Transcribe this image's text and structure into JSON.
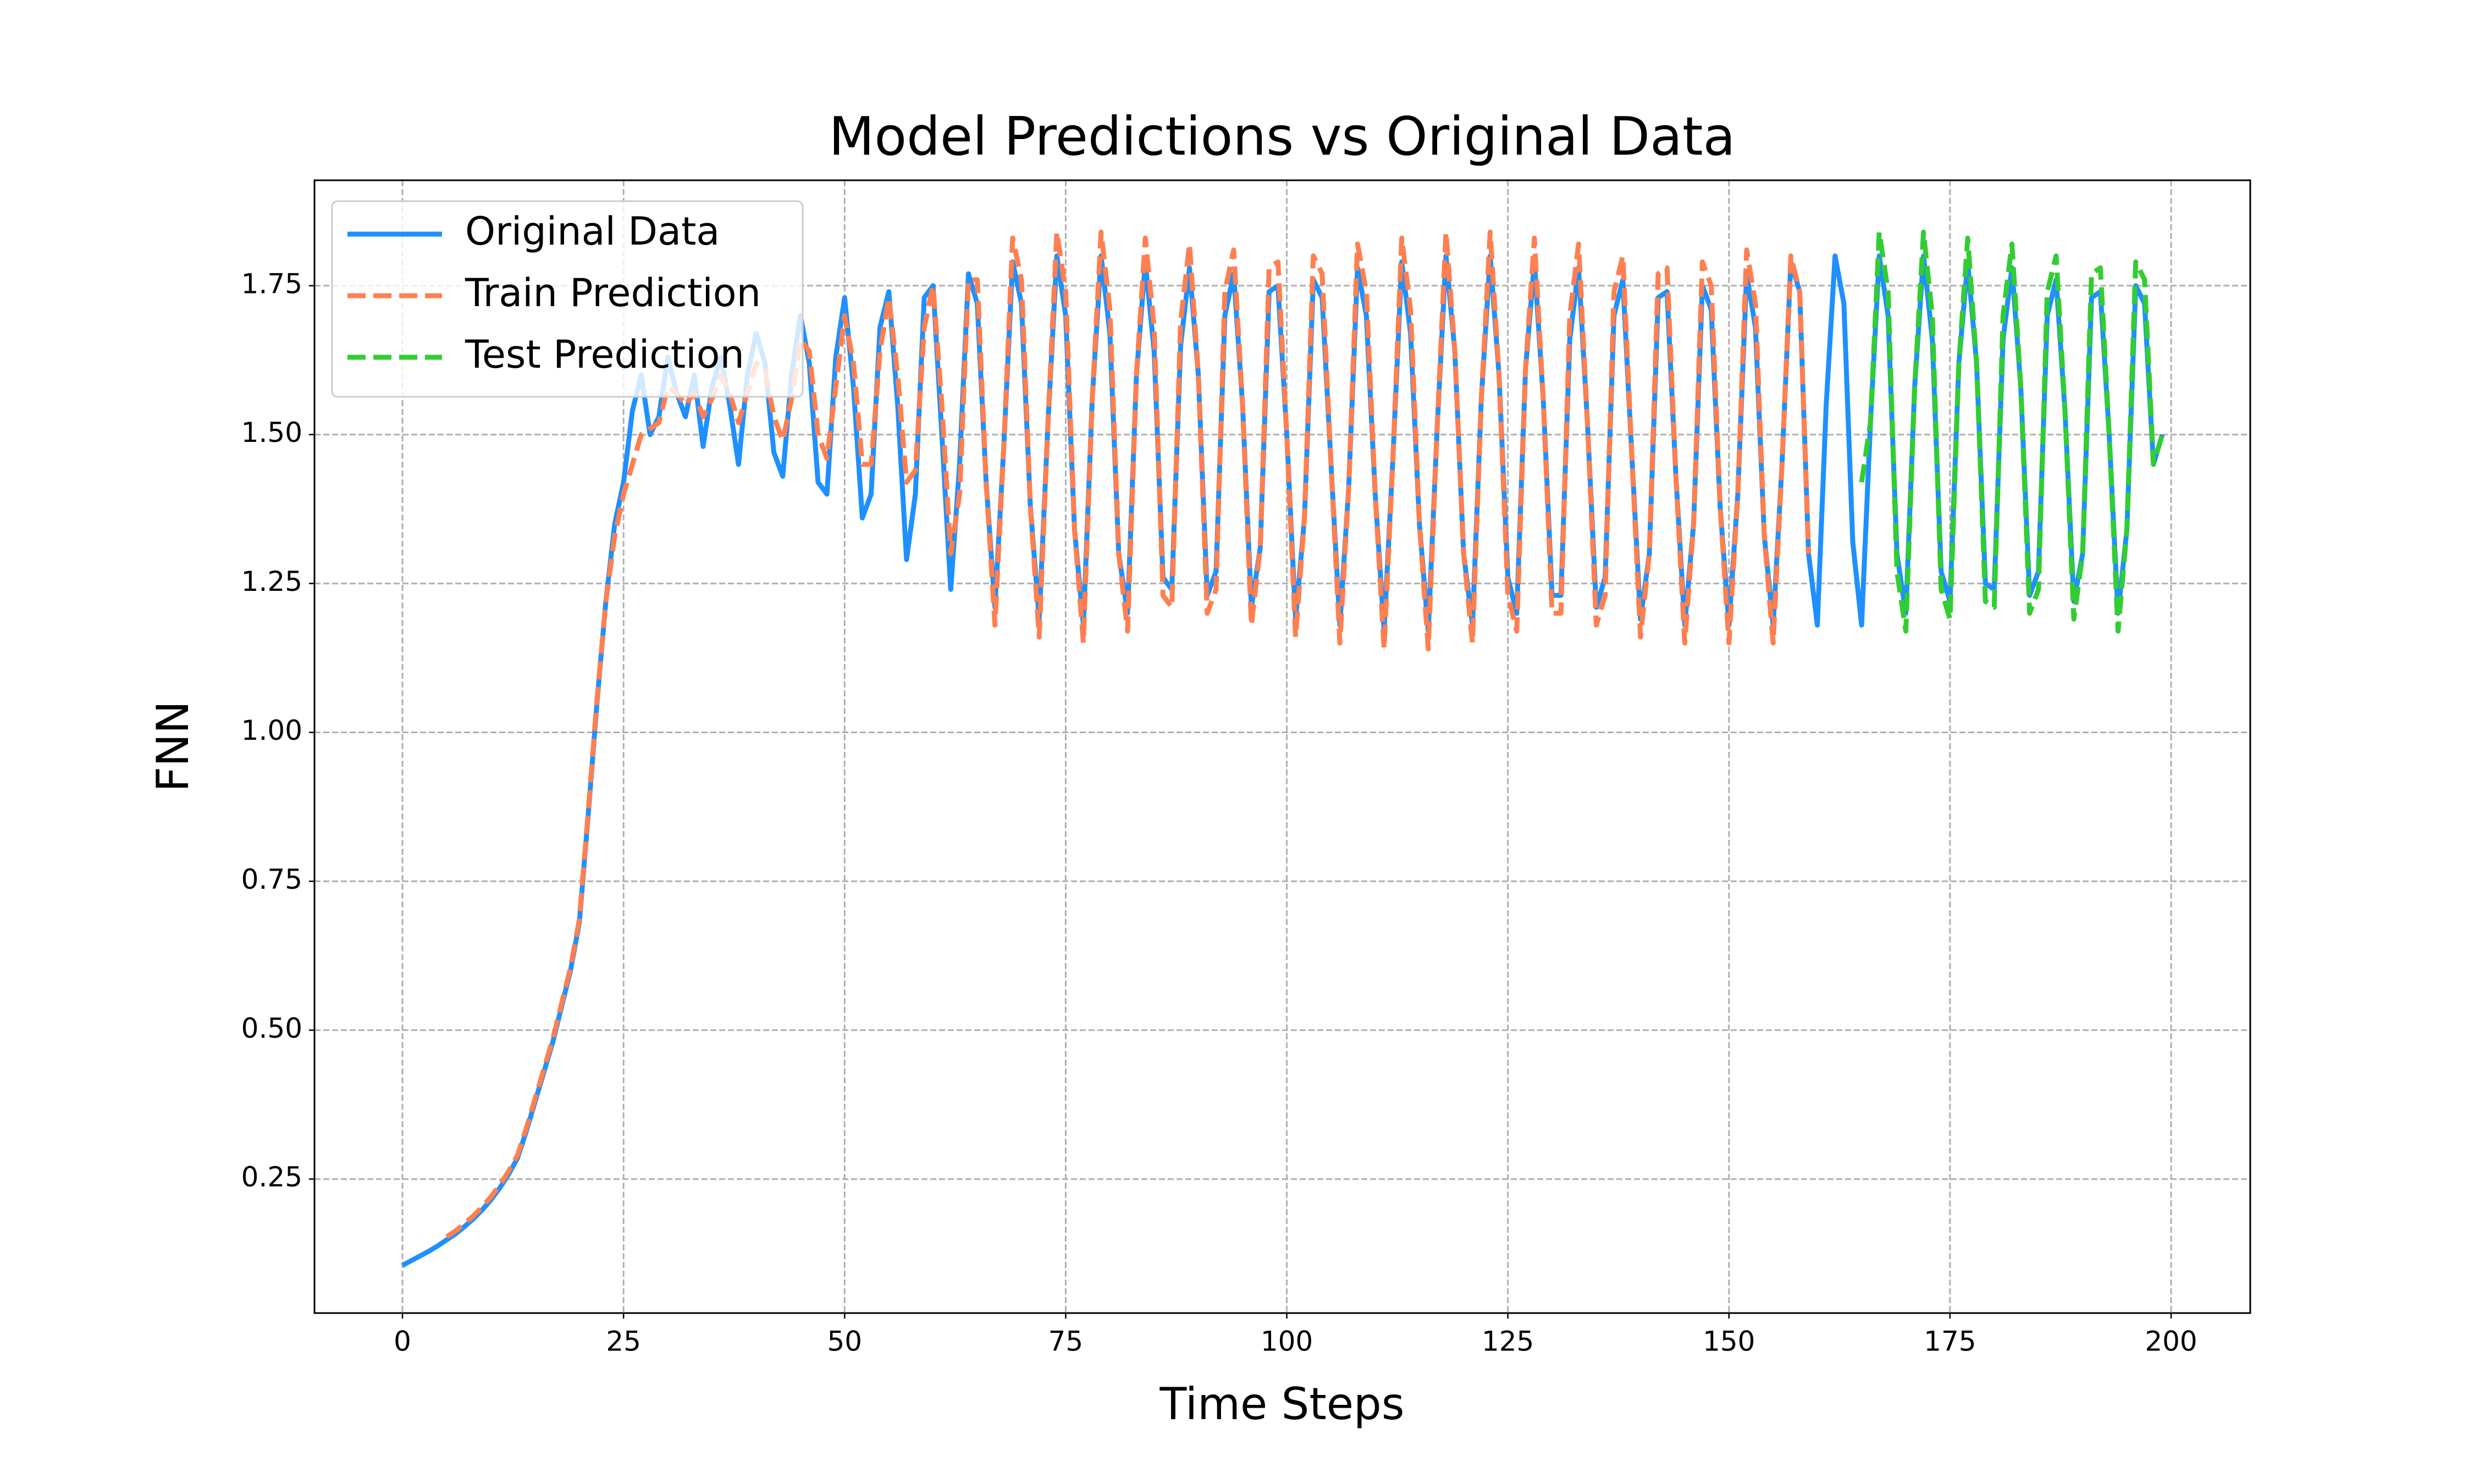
{
  "chart_data": {
    "type": "line",
    "title": "Model Predictions vs Original Data",
    "xlabel": "Time Steps",
    "ylabel": "FNN",
    "xlim": [
      -9.95,
      208.95
    ],
    "ylim": [
      0.025,
      1.927
    ],
    "xticks": [
      0,
      25,
      50,
      75,
      100,
      125,
      150,
      175,
      200
    ],
    "yticks": [
      0.25,
      {
        "value": 0.5,
        "label": "0.50"
      },
      0.75,
      {
        "value": 1.0,
        "label": "1.00"
      },
      1.25,
      {
        "value": 1.5,
        "label": "1.50"
      },
      1.75
    ],
    "grid": true,
    "legend": "upper left",
    "x": [
      0,
      1,
      2,
      3,
      4,
      5,
      6,
      7,
      8,
      9,
      10,
      11,
      12,
      13,
      14,
      15,
      16,
      17,
      18,
      19,
      20,
      21,
      22,
      23,
      24,
      25,
      26,
      27,
      28,
      29,
      30,
      31,
      32,
      33,
      34,
      35,
      36,
      37,
      38,
      39,
      40,
      41,
      42,
      43,
      44,
      45,
      46,
      47,
      48,
      49,
      50,
      51,
      52,
      53,
      54,
      55,
      56,
      57,
      58,
      59,
      60,
      61,
      62,
      63,
      64,
      65,
      66,
      67,
      68,
      69,
      70,
      71,
      72,
      73,
      74,
      75,
      76,
      77,
      78,
      79,
      80,
      81,
      82,
      83,
      84,
      85,
      86,
      87,
      88,
      89,
      90,
      91,
      92,
      93,
      94,
      95,
      96,
      97,
      98,
      99,
      100,
      101,
      102,
      103,
      104,
      105,
      106,
      107,
      108,
      109,
      110,
      111,
      112,
      113,
      114,
      115,
      116,
      117,
      118,
      119,
      120,
      121,
      122,
      123,
      124,
      125,
      126,
      127,
      128,
      129,
      130,
      131,
      132,
      133,
      134,
      135,
      136,
      137,
      138,
      139,
      140,
      141,
      142,
      143,
      144,
      145,
      146,
      147,
      148,
      149,
      150,
      151,
      152,
      153,
      154,
      155,
      156,
      157,
      158,
      159,
      160,
      161,
      162,
      163,
      164,
      165,
      166,
      167,
      168,
      169,
      170,
      171,
      172,
      173,
      174,
      175,
      176,
      177,
      178,
      179,
      180,
      181,
      182,
      183,
      184,
      185,
      186,
      187,
      188,
      189,
      190,
      191,
      192,
      193,
      194,
      195,
      196,
      197,
      198,
      199
    ],
    "series": [
      {
        "name": "Original Data",
        "color": "#1e90ff",
        "linestyle": "solid",
        "values": [
          0.105,
          0.113,
          0.121,
          0.129,
          0.138,
          0.148,
          0.158,
          0.17,
          0.183,
          0.198,
          0.215,
          0.235,
          0.258,
          0.285,
          0.33,
          0.38,
          0.43,
          0.48,
          0.54,
          0.6,
          0.68,
          0.86,
          1.05,
          1.22,
          1.35,
          1.42,
          1.54,
          1.6,
          1.5,
          1.53,
          1.63,
          1.57,
          1.53,
          1.6,
          1.48,
          1.58,
          1.63,
          1.55,
          1.45,
          1.6,
          1.67,
          1.62,
          1.47,
          1.43,
          1.6,
          1.7,
          1.62,
          1.42,
          1.4,
          1.63,
          1.73,
          1.58,
          1.36,
          1.4,
          1.68,
          1.74,
          1.55,
          1.29,
          1.4,
          1.73,
          1.75,
          1.5,
          1.24,
          1.45,
          1.77,
          1.72,
          1.42,
          1.21,
          1.48,
          1.79,
          1.72,
          1.38,
          1.19,
          1.52,
          1.8,
          1.7,
          1.34,
          1.18,
          1.56,
          1.8,
          1.67,
          1.3,
          1.2,
          1.6,
          1.79,
          1.64,
          1.26,
          1.24,
          1.65,
          1.78,
          1.6,
          1.23,
          1.27,
          1.7,
          1.77,
          1.55,
          1.21,
          1.31,
          1.74,
          1.75,
          1.5,
          1.19,
          1.36,
          1.76,
          1.73,
          1.45,
          1.18,
          1.41,
          1.78,
          1.7,
          1.4,
          1.17,
          1.46,
          1.79,
          1.67,
          1.35,
          1.17,
          1.51,
          1.8,
          1.64,
          1.3,
          1.18,
          1.56,
          1.8,
          1.6,
          1.26,
          1.2,
          1.61,
          1.79,
          1.56,
          1.23,
          1.23,
          1.66,
          1.78,
          1.52,
          1.21,
          1.26,
          1.7,
          1.76,
          1.47,
          1.19,
          1.3,
          1.73,
          1.74,
          1.43,
          1.18,
          1.35,
          1.75,
          1.71,
          1.38,
          1.18,
          1.4,
          1.77,
          1.68,
          1.33,
          1.18,
          1.45,
          1.79,
          1.74,
          1.3,
          1.18,
          1.55,
          1.8,
          1.72,
          1.32,
          1.18,
          1.52,
          1.8,
          1.7,
          1.3,
          1.2,
          1.58,
          1.8,
          1.66,
          1.27,
          1.22,
          1.62,
          1.79,
          1.62,
          1.25,
          1.24,
          1.66,
          1.78,
          1.58,
          1.23,
          1.27,
          1.7,
          1.76,
          1.54,
          1.22,
          1.3,
          1.73,
          1.74,
          1.5,
          1.2,
          1.34,
          1.75,
          1.72,
          1.45,
          1.5
        ]
      },
      {
        "name": "Train Prediction",
        "color": "#ff7f50",
        "linestyle": "dashed",
        "values": [
          null,
          null,
          null,
          null,
          null,
          0.153,
          0.163,
          0.175,
          0.188,
          0.203,
          0.22,
          0.24,
          0.263,
          0.29,
          0.335,
          0.385,
          0.435,
          0.485,
          0.545,
          0.605,
          0.685,
          0.865,
          1.055,
          1.22,
          1.33,
          1.4,
          1.45,
          1.5,
          1.51,
          1.52,
          1.58,
          1.57,
          1.55,
          1.57,
          1.53,
          1.56,
          1.6,
          1.57,
          1.52,
          1.57,
          1.62,
          1.61,
          1.53,
          1.49,
          1.56,
          1.66,
          1.64,
          1.5,
          1.46,
          1.58,
          1.7,
          1.62,
          1.45,
          1.45,
          1.64,
          1.73,
          1.6,
          1.42,
          1.44,
          1.68,
          1.75,
          1.55,
          1.3,
          1.4,
          1.76,
          1.76,
          1.42,
          1.18,
          1.48,
          1.83,
          1.76,
          1.38,
          1.16,
          1.52,
          1.84,
          1.74,
          1.34,
          1.15,
          1.56,
          1.84,
          1.71,
          1.3,
          1.17,
          1.6,
          1.83,
          1.68,
          1.23,
          1.21,
          1.69,
          1.82,
          1.6,
          1.2,
          1.24,
          1.74,
          1.81,
          1.55,
          1.18,
          1.31,
          1.78,
          1.79,
          1.5,
          1.16,
          1.36,
          1.8,
          1.77,
          1.45,
          1.15,
          1.41,
          1.82,
          1.74,
          1.4,
          1.14,
          1.46,
          1.83,
          1.71,
          1.35,
          1.14,
          1.51,
          1.84,
          1.64,
          1.3,
          1.15,
          1.56,
          1.84,
          1.6,
          1.23,
          1.17,
          1.61,
          1.83,
          1.56,
          1.2,
          1.2,
          1.7,
          1.82,
          1.52,
          1.18,
          1.23,
          1.74,
          1.8,
          1.47,
          1.16,
          1.3,
          1.77,
          1.78,
          1.43,
          1.15,
          1.35,
          1.79,
          1.75,
          1.38,
          1.15,
          1.4,
          1.81,
          1.72,
          1.33,
          1.15,
          1.45,
          1.8,
          1.74,
          1.3,
          null,
          null,
          null,
          null,
          null,
          null,
          null,
          null,
          null,
          null,
          null,
          null,
          null,
          null,
          null,
          null,
          null,
          null,
          null,
          null,
          null,
          null,
          null,
          null,
          null,
          null,
          null,
          null,
          null,
          null,
          null,
          null,
          null,
          null,
          null,
          null,
          null,
          null,
          null,
          null
        ]
      },
      {
        "name": "Test Prediction",
        "color": "#32cd32",
        "linestyle": "dashed",
        "values": [
          null,
          null,
          null,
          null,
          null,
          null,
          null,
          null,
          null,
          null,
          null,
          null,
          null,
          null,
          null,
          null,
          null,
          null,
          null,
          null,
          null,
          null,
          null,
          null,
          null,
          null,
          null,
          null,
          null,
          null,
          null,
          null,
          null,
          null,
          null,
          null,
          null,
          null,
          null,
          null,
          null,
          null,
          null,
          null,
          null,
          null,
          null,
          null,
          null,
          null,
          null,
          null,
          null,
          null,
          null,
          null,
          null,
          null,
          null,
          null,
          null,
          null,
          null,
          null,
          null,
          null,
          null,
          null,
          null,
          null,
          null,
          null,
          null,
          null,
          null,
          null,
          null,
          null,
          null,
          null,
          null,
          null,
          null,
          null,
          null,
          null,
          null,
          null,
          null,
          null,
          null,
          null,
          null,
          null,
          null,
          null,
          null,
          null,
          null,
          null,
          null,
          null,
          null,
          null,
          null,
          null,
          null,
          null,
          null,
          null,
          null,
          null,
          null,
          null,
          null,
          null,
          null,
          null,
          null,
          null,
          null,
          null,
          null,
          null,
          null,
          null,
          null,
          null,
          null,
          null,
          null,
          null,
          null,
          null,
          null,
          null,
          null,
          null,
          null,
          null,
          null,
          null,
          null,
          null,
          null,
          null,
          null,
          null,
          null,
          null,
          null,
          null,
          null,
          null,
          null,
          null,
          null,
          null,
          null,
          null,
          null,
          null,
          null,
          null,
          null,
          1.42,
          1.52,
          1.84,
          1.74,
          1.27,
          1.17,
          1.58,
          1.84,
          1.7,
          1.24,
          1.19,
          1.62,
          1.83,
          1.62,
          1.22,
          1.21,
          1.7,
          1.82,
          1.58,
          1.2,
          1.24,
          1.74,
          1.8,
          1.54,
          1.19,
          1.3,
          1.77,
          1.78,
          1.5,
          1.17,
          1.34,
          1.79,
          1.76,
          1.45,
          1.5
        ]
      }
    ]
  }
}
